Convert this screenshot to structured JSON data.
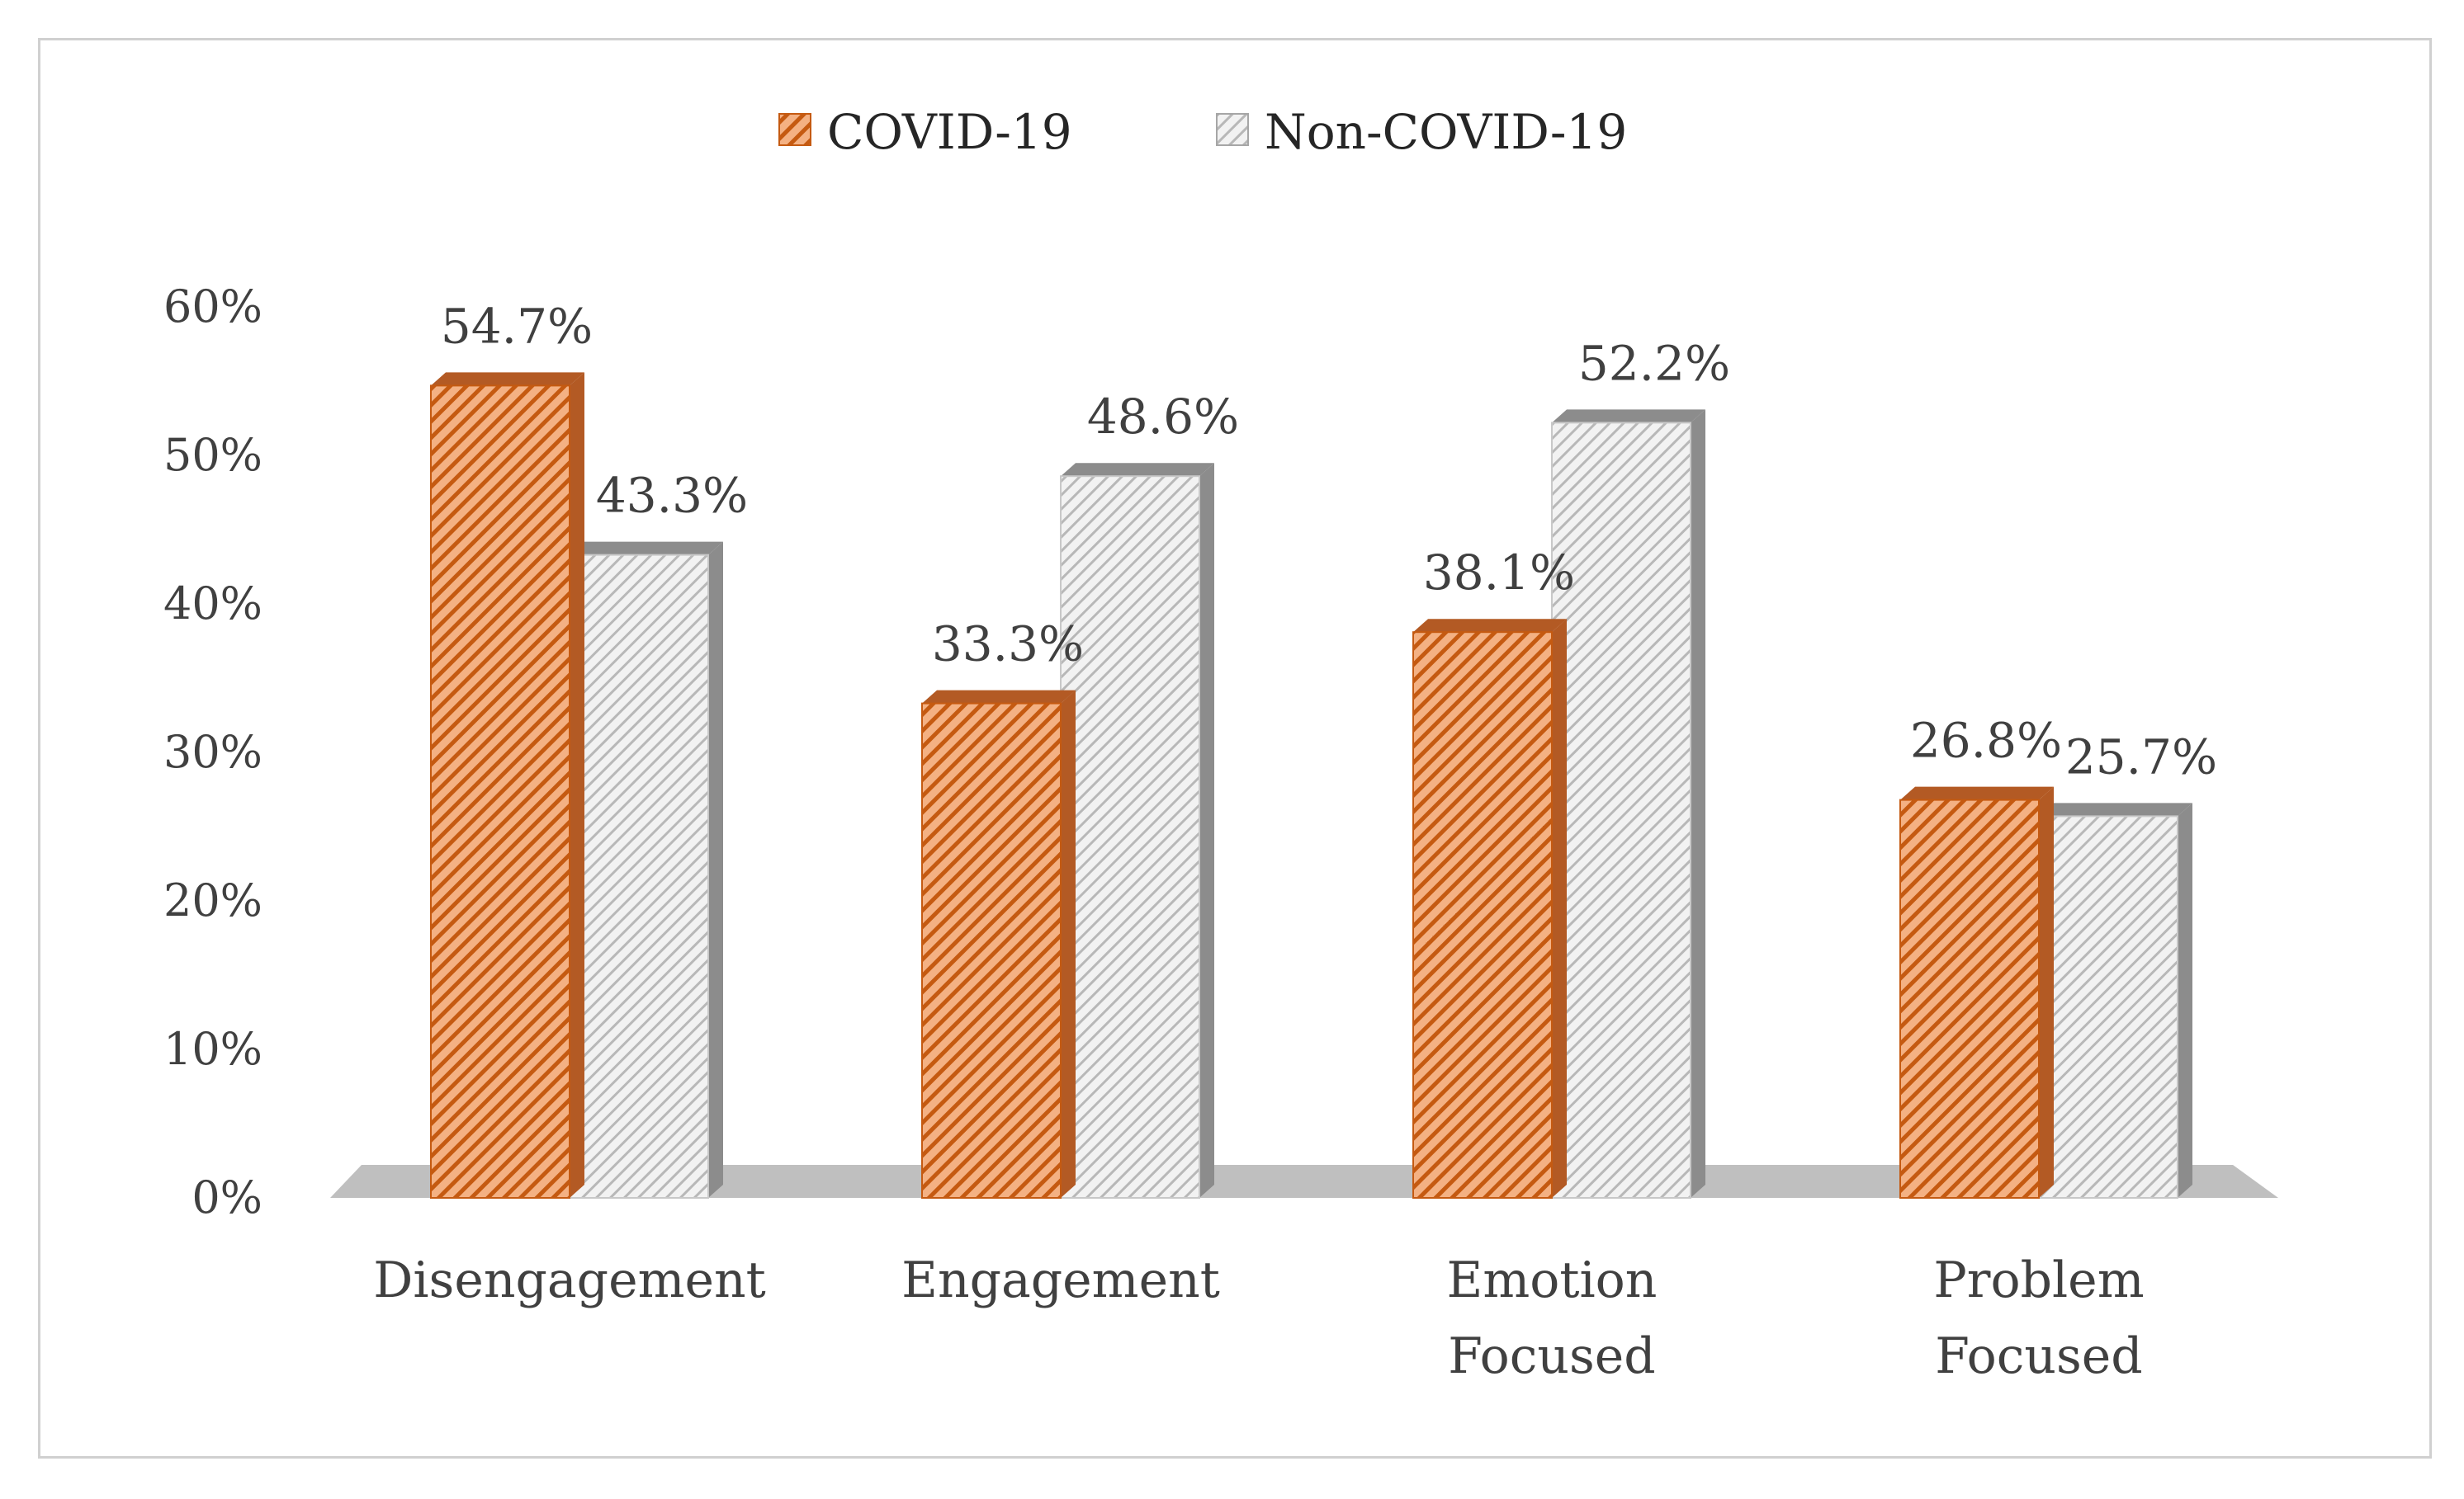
{
  "colors": {
    "covid_fill": "#f4b183",
    "covid_stripe": "#c55a11",
    "covid_side": "#b35a24",
    "noncovid_fill": "#f2f2f2",
    "noncovid_stripe": "#b8b8b8",
    "noncovid_side": "#8c8c8c",
    "floor": "#bfbfbf",
    "text": "#404040"
  },
  "chart_data": {
    "type": "bar",
    "title": "",
    "xlabel": "",
    "ylabel": "",
    "ylim": [
      0,
      60
    ],
    "yticks": [
      "0%",
      "10%",
      "20%",
      "30%",
      "40%",
      "50%",
      "60%"
    ],
    "ytick_values": [
      0,
      10,
      20,
      30,
      40,
      50,
      60
    ],
    "grid": false,
    "legend_position": "top",
    "categories": [
      {
        "lines": [
          "Disengagement"
        ]
      },
      {
        "lines": [
          "Engagement"
        ]
      },
      {
        "lines": [
          "Emotion",
          "Focused"
        ]
      },
      {
        "lines": [
          "Problem",
          "Focused"
        ]
      }
    ],
    "series": [
      {
        "name": "COVID-19",
        "values": [
          54.7,
          33.3,
          38.1,
          26.8
        ],
        "labels": [
          "54.7%",
          "33.3%",
          "38.1%",
          "26.8%"
        ]
      },
      {
        "name": "Non-COVID-19",
        "values": [
          43.3,
          48.6,
          52.2,
          25.7
        ],
        "labels": [
          "43.3%",
          "48.6%",
          "52.2%",
          "25.7%"
        ]
      }
    ]
  }
}
